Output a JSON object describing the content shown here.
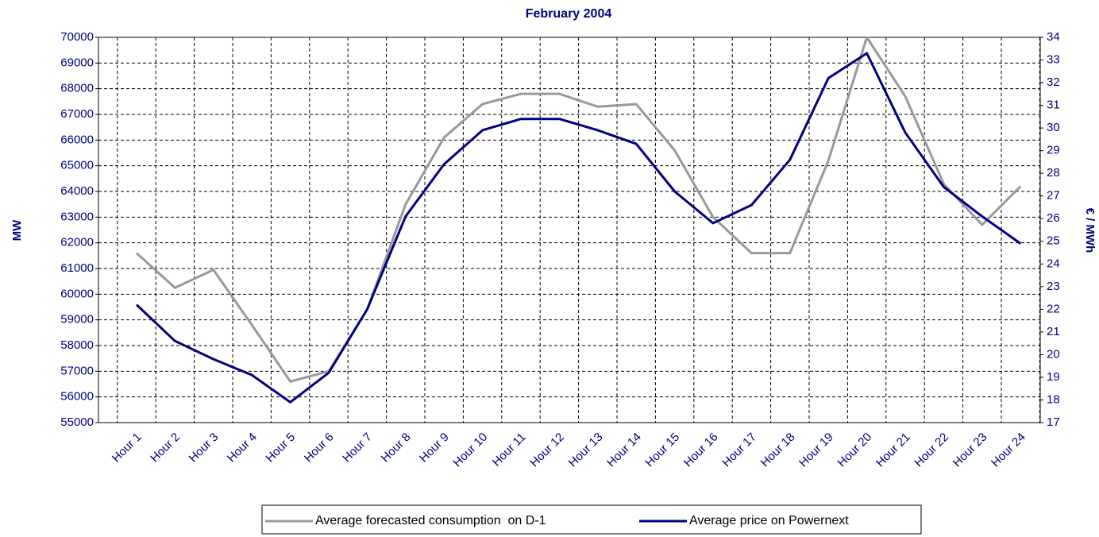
{
  "chart_data": {
    "type": "line",
    "title": "February 2004",
    "y_label": "MW",
    "y2_label": "€ / MWh",
    "categories": [
      "Hour 1",
      "Hour 2",
      "Hour 3",
      "Hour 4",
      "Hour 5",
      "Hour 6",
      "Hour 7",
      "Hour 8",
      "Hour 9",
      "Hour 10",
      "Hour 11",
      "Hour 12",
      "Hour 13",
      "Hour 14",
      "Hour 15",
      "Hour 16",
      "Hour 17",
      "Hour 18",
      "Hour 19",
      "Hour 20",
      "Hour 21",
      "Hour 22",
      "Hour 23",
      "Hour 24"
    ],
    "series": [
      {
        "name": "Average forecasted consumption  on D-1",
        "color": "#999999",
        "axis": "y",
        "values": [
          61600,
          60250,
          60950,
          58800,
          56600,
          57000,
          59400,
          63500,
          66100,
          67400,
          67800,
          67800,
          67300,
          67400,
          65600,
          63000,
          61600,
          61600,
          65200,
          70000,
          67700,
          64300,
          62700,
          64200
        ]
      },
      {
        "name": "Average price on Powernext",
        "color": "#000080",
        "axis": "y2",
        "values": [
          22.2,
          20.6,
          19.8,
          19.1,
          17.9,
          19.2,
          22.0,
          26.1,
          28.4,
          29.9,
          30.4,
          30.4,
          29.9,
          29.3,
          27.2,
          25.8,
          26.6,
          28.6,
          32.2,
          33.3,
          29.8,
          27.4,
          26.1,
          24.9
        ]
      }
    ],
    "ylim": [
      55000,
      70000
    ],
    "yticks": [
      55000,
      56000,
      57000,
      58000,
      59000,
      60000,
      61000,
      62000,
      63000,
      64000,
      65000,
      66000,
      67000,
      68000,
      69000,
      70000
    ],
    "y2lim": [
      17,
      34
    ],
    "y2ticks": [
      17,
      18,
      19,
      20,
      21,
      22,
      23,
      24,
      25,
      26,
      27,
      28,
      29,
      30,
      31,
      32,
      33,
      34
    ],
    "grid": true,
    "legend": "bottom"
  }
}
